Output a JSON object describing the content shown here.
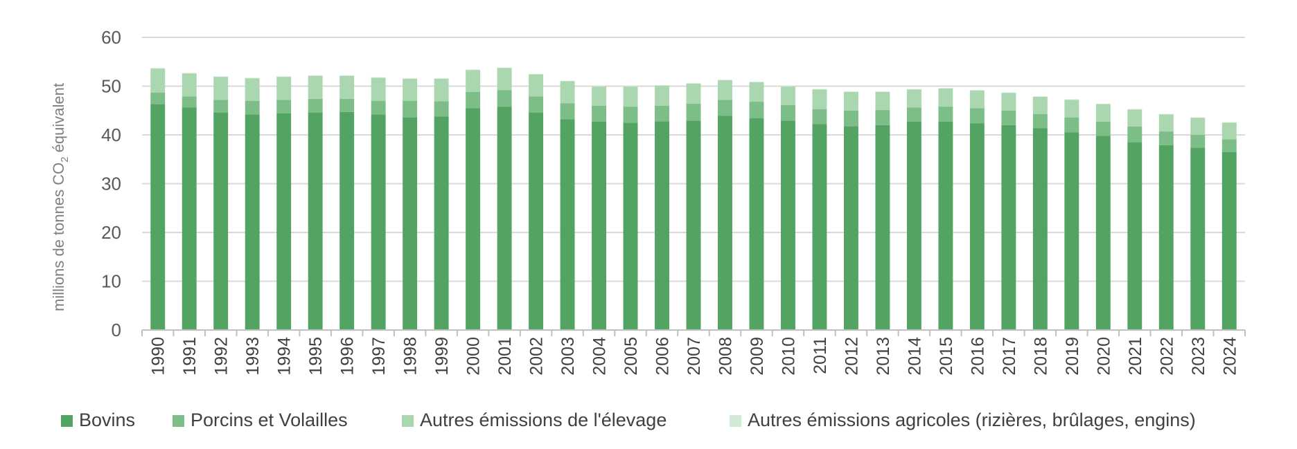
{
  "chart_data": {
    "type": "bar",
    "stacked": true,
    "ylabel_prefix": "millions de tonnes CO",
    "ylabel_subscript": "2",
    "ylabel_suffix": " équivalent",
    "ylim": [
      0,
      60
    ],
    "yticks": [
      0,
      10,
      20,
      30,
      40,
      50,
      60
    ],
    "grid": true,
    "legend_position": "bottom",
    "categories": [
      "1990",
      "1991",
      "1992",
      "1993",
      "1994",
      "1995",
      "1996",
      "1997",
      "1998",
      "1999",
      "2000",
      "2001",
      "2002",
      "2003",
      "2004",
      "2005",
      "2006",
      "2007",
      "2008",
      "2009",
      "2010",
      "2011",
      "2012",
      "2013",
      "2014",
      "2015",
      "2016",
      "2017",
      "2018",
      "2019",
      "2020",
      "2021",
      "2022",
      "2023",
      "2024"
    ],
    "series": [
      {
        "name": "Bovins",
        "color": "#53a463",
        "values": [
          46.3,
          45.6,
          44.6,
          44.2,
          44.4,
          44.6,
          44.7,
          44.2,
          43.6,
          43.8,
          45.5,
          45.8,
          44.6,
          43.2,
          42.7,
          42.5,
          42.8,
          42.9,
          43.9,
          43.4,
          42.9,
          42.2,
          41.8,
          42.0,
          42.7,
          42.7,
          42.4,
          42.0,
          41.4,
          40.5,
          39.8,
          38.5,
          37.9,
          37.4,
          36.5
        ]
      },
      {
        "name": "Porcins et Volailles",
        "color": "#7dbd87",
        "values": [
          2.4,
          2.3,
          2.6,
          2.8,
          2.8,
          2.8,
          2.7,
          2.8,
          3.4,
          3.1,
          3.3,
          3.4,
          3.3,
          3.3,
          3.3,
          3.3,
          3.2,
          3.5,
          3.3,
          3.4,
          3.2,
          3.1,
          3.2,
          3.1,
          2.9,
          3.1,
          3.1,
          3.0,
          2.9,
          3.1,
          2.9,
          3.2,
          2.8,
          2.6,
          2.6
        ]
      },
      {
        "name": "Autres émissions de l'élevage",
        "color": "#aad6b0",
        "values": [
          4.9,
          4.7,
          4.7,
          4.6,
          4.7,
          4.7,
          4.7,
          4.7,
          4.5,
          4.6,
          4.5,
          4.5,
          4.5,
          4.5,
          3.9,
          4.1,
          4.1,
          4.1,
          4.0,
          4.0,
          3.8,
          4.0,
          3.8,
          3.7,
          3.7,
          3.7,
          3.6,
          3.6,
          3.5,
          3.6,
          3.6,
          3.5,
          3.5,
          3.5,
          3.4
        ]
      },
      {
        "name": "Autres émissions agricoles (rizières, brûlages, engins)",
        "color": "#cfe9d3",
        "values": [
          0.1,
          0.1,
          0.1,
          0.1,
          0.1,
          0.1,
          0.1,
          0.1,
          0.1,
          0.1,
          0.1,
          0.1,
          0.1,
          0.1,
          0.1,
          0.1,
          0.1,
          0.1,
          0.1,
          0.1,
          0.1,
          0.1,
          0.1,
          0.1,
          0.1,
          0.1,
          0.1,
          0.1,
          0.1,
          0.1,
          0.1,
          0.1,
          0.1,
          0.1,
          0.1
        ]
      }
    ]
  }
}
